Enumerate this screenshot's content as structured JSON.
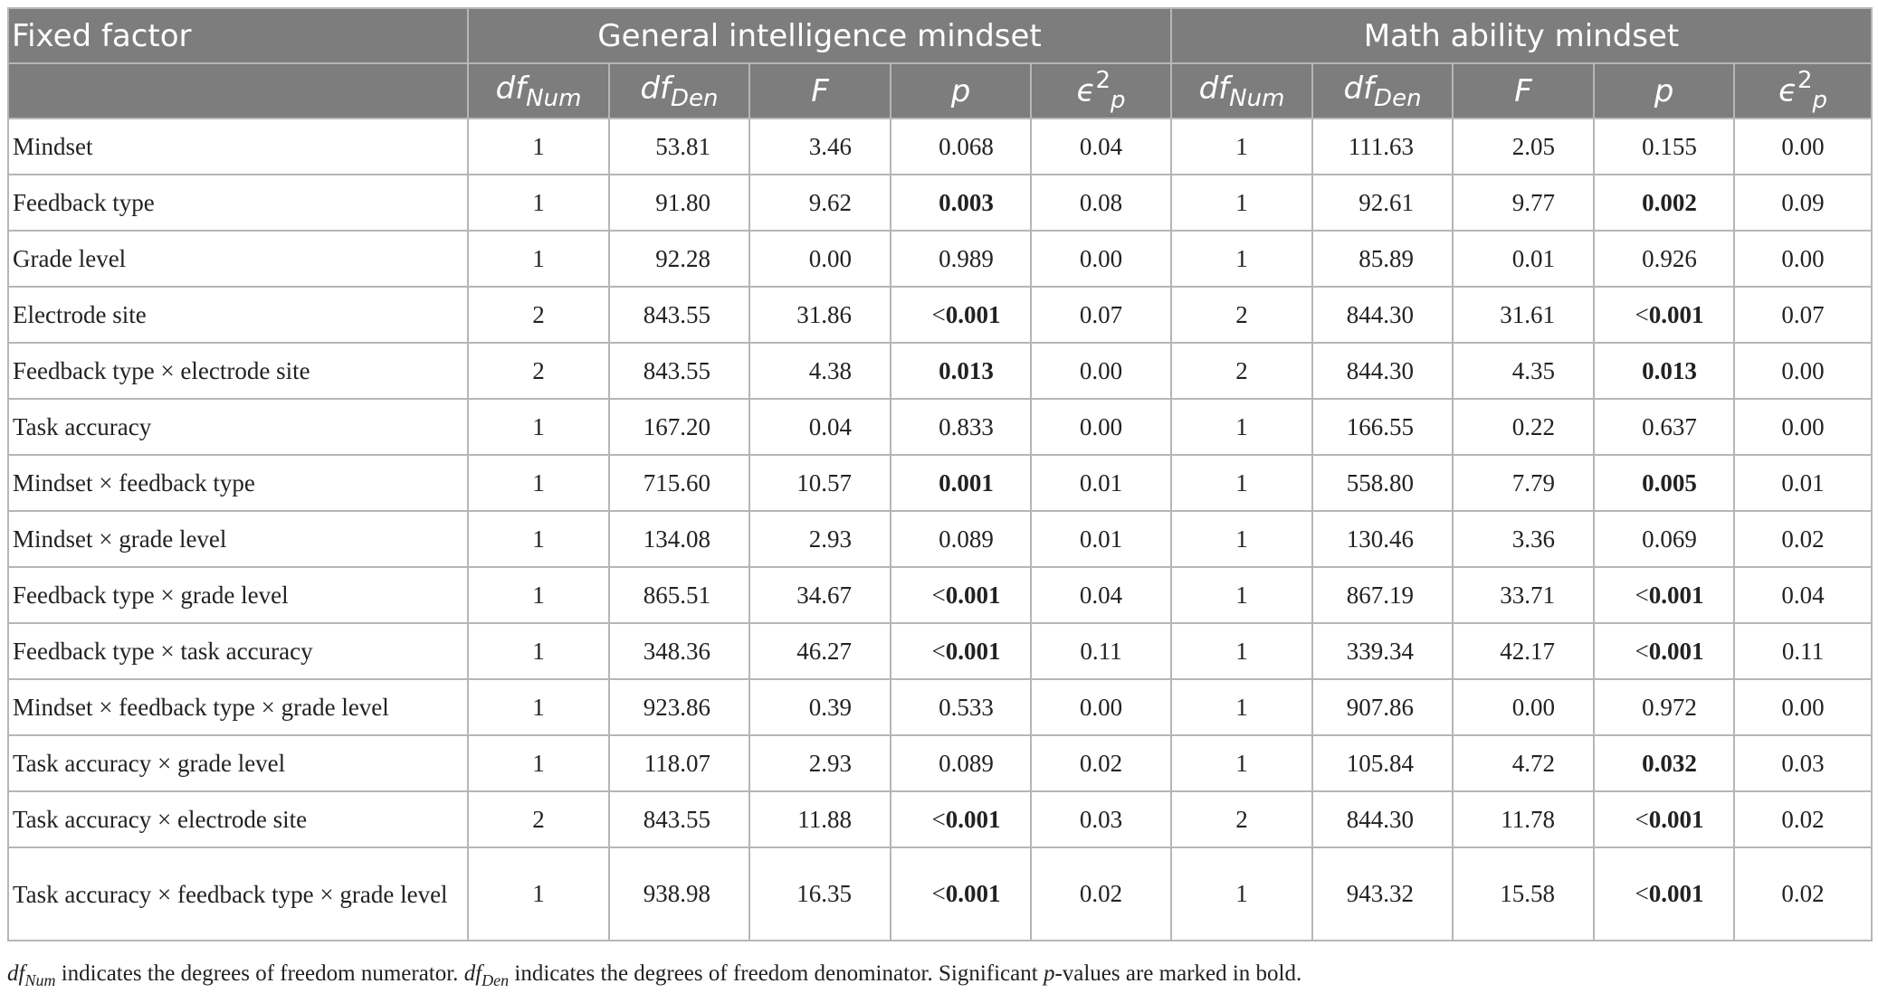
{
  "header": {
    "fixed_factor": "Fixed factor",
    "group1": "General intelligence mindset",
    "group2": "Math ability mindset",
    "col_df_base": "df",
    "col_dfnum_sub": "Num",
    "col_dfden_sub": "Den",
    "col_f": "F",
    "col_p": "p",
    "col_eps_base": "ϵ",
    "col_eps_sup": "2",
    "col_eps_sub": "p"
  },
  "rows": [
    {
      "label": "Mindset",
      "g": {
        "dfnum": "1",
        "dfden": "53.81",
        "f": "3.46",
        "p_pre": "",
        "p": "0.068",
        "p_bold": false,
        "eps": "0.04"
      },
      "m": {
        "dfnum": "1",
        "dfden": "111.63",
        "f": "2.05",
        "p_pre": "",
        "p": "0.155",
        "p_bold": false,
        "eps": "0.00"
      }
    },
    {
      "label": "Feedback type",
      "g": {
        "dfnum": "1",
        "dfden": "91.80",
        "f": "9.62",
        "p_pre": "",
        "p": "0.003",
        "p_bold": true,
        "eps": "0.08"
      },
      "m": {
        "dfnum": "1",
        "dfden": "92.61",
        "f": "9.77",
        "p_pre": "",
        "p": "0.002",
        "p_bold": true,
        "eps": "0.09"
      }
    },
    {
      "label": "Grade level",
      "g": {
        "dfnum": "1",
        "dfden": "92.28",
        "f": "0.00",
        "p_pre": "",
        "p": "0.989",
        "p_bold": false,
        "eps": "0.00"
      },
      "m": {
        "dfnum": "1",
        "dfden": "85.89",
        "f": "0.01",
        "p_pre": "",
        "p": "0.926",
        "p_bold": false,
        "eps": "0.00"
      }
    },
    {
      "label": "Electrode site",
      "g": {
        "dfnum": "2",
        "dfden": "843.55",
        "f": "31.86",
        "p_pre": "<",
        "p": "0.001",
        "p_bold": true,
        "eps": "0.07"
      },
      "m": {
        "dfnum": "2",
        "dfden": "844.30",
        "f": "31.61",
        "p_pre": "<",
        "p": "0.001",
        "p_bold": true,
        "eps": "0.07"
      }
    },
    {
      "label": "Feedback type × electrode site",
      "g": {
        "dfnum": "2",
        "dfden": "843.55",
        "f": "4.38",
        "p_pre": "",
        "p": "0.013",
        "p_bold": true,
        "eps": "0.00"
      },
      "m": {
        "dfnum": "2",
        "dfden": "844.30",
        "f": "4.35",
        "p_pre": "",
        "p": "0.013",
        "p_bold": true,
        "eps": "0.00"
      }
    },
    {
      "label": "Task accuracy",
      "g": {
        "dfnum": "1",
        "dfden": "167.20",
        "f": "0.04",
        "p_pre": "",
        "p": "0.833",
        "p_bold": false,
        "eps": "0.00"
      },
      "m": {
        "dfnum": "1",
        "dfden": "166.55",
        "f": "0.22",
        "p_pre": "",
        "p": "0.637",
        "p_bold": false,
        "eps": "0.00"
      }
    },
    {
      "label": "Mindset × feedback type",
      "g": {
        "dfnum": "1",
        "dfden": "715.60",
        "f": "10.57",
        "p_pre": "",
        "p": "0.001",
        "p_bold": true,
        "eps": "0.01"
      },
      "m": {
        "dfnum": "1",
        "dfden": "558.80",
        "f": "7.79",
        "p_pre": "",
        "p": "0.005",
        "p_bold": true,
        "eps": "0.01"
      }
    },
    {
      "label": "Mindset × grade level",
      "g": {
        "dfnum": "1",
        "dfden": "134.08",
        "f": "2.93",
        "p_pre": "",
        "p": "0.089",
        "p_bold": false,
        "eps": "0.01"
      },
      "m": {
        "dfnum": "1",
        "dfden": "130.46",
        "f": "3.36",
        "p_pre": "",
        "p": "0.069",
        "p_bold": false,
        "eps": "0.02"
      }
    },
    {
      "label": "Feedback type × grade level",
      "g": {
        "dfnum": "1",
        "dfden": "865.51",
        "f": "34.67",
        "p_pre": "<",
        "p": "0.001",
        "p_bold": true,
        "eps": "0.04"
      },
      "m": {
        "dfnum": "1",
        "dfden": "867.19",
        "f": "33.71",
        "p_pre": "<",
        "p": "0.001",
        "p_bold": true,
        "eps": "0.04"
      }
    },
    {
      "label": "Feedback type × task accuracy",
      "g": {
        "dfnum": "1",
        "dfden": "348.36",
        "f": "46.27",
        "p_pre": "<",
        "p": "0.001",
        "p_bold": true,
        "eps": "0.11"
      },
      "m": {
        "dfnum": "1",
        "dfden": "339.34",
        "f": "42.17",
        "p_pre": "<",
        "p": "0.001",
        "p_bold": true,
        "eps": "0.11"
      }
    },
    {
      "label": "Mindset × feedback type × grade level",
      "g": {
        "dfnum": "1",
        "dfden": "923.86",
        "f": "0.39",
        "p_pre": "",
        "p": "0.533",
        "p_bold": false,
        "eps": "0.00"
      },
      "m": {
        "dfnum": "1",
        "dfden": "907.86",
        "f": "0.00",
        "p_pre": "",
        "p": "0.972",
        "p_bold": false,
        "eps": "0.00"
      }
    },
    {
      "label": "Task accuracy × grade level",
      "g": {
        "dfnum": "1",
        "dfden": "118.07",
        "f": "2.93",
        "p_pre": "",
        "p": "0.089",
        "p_bold": false,
        "eps": "0.02"
      },
      "m": {
        "dfnum": "1",
        "dfden": "105.84",
        "f": "4.72",
        "p_pre": "",
        "p": "0.032",
        "p_bold": true,
        "eps": "0.03"
      }
    },
    {
      "label": "Task accuracy × electrode site",
      "g": {
        "dfnum": "2",
        "dfden": "843.55",
        "f": "11.88",
        "p_pre": "<",
        "p": "0.001",
        "p_bold": true,
        "eps": "0.03"
      },
      "m": {
        "dfnum": "2",
        "dfden": "844.30",
        "f": "11.78",
        "p_pre": "<",
        "p": "0.001",
        "p_bold": true,
        "eps": "0.02"
      }
    },
    {
      "label": "Task accuracy × feedback type × grade level",
      "tall": true,
      "g": {
        "dfnum": "1",
        "dfden": "938.98",
        "f": "16.35",
        "p_pre": "<",
        "p": "0.001",
        "p_bold": true,
        "eps": "0.02"
      },
      "m": {
        "dfnum": "1",
        "dfden": "943.32",
        "f": "15.58",
        "p_pre": "<",
        "p": "0.001",
        "p_bold": true,
        "eps": "0.02"
      }
    }
  ],
  "footnote": {
    "dfnum_base": "df",
    "dfnum_sub": "Num",
    "text1": " indicates the degrees of freedom numerator. ",
    "dfden_base": "df",
    "dfden_sub": "Den",
    "text2": " indicates the degrees of freedom denominator. Significant ",
    "p_italic": "p",
    "text3": "-values are marked in bold."
  }
}
